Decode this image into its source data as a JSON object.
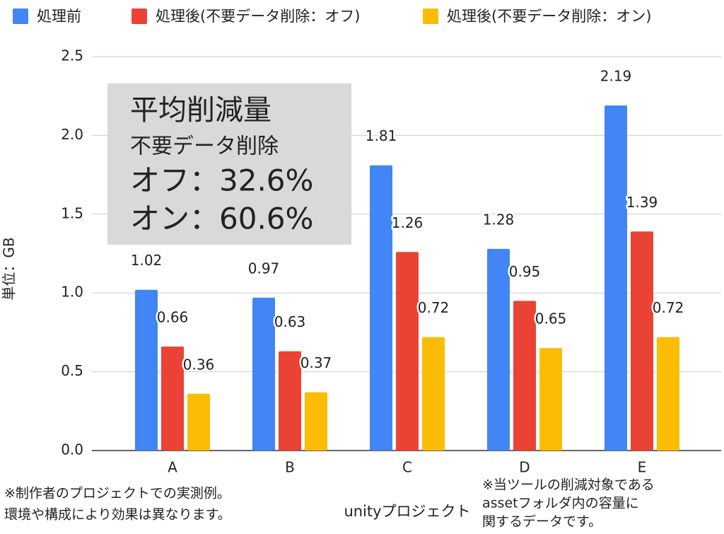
{
  "chart_data": {
    "type": "bar",
    "categories": [
      "A",
      "B",
      "C",
      "D",
      "E"
    ],
    "series": [
      {
        "name": "処理前",
        "color": "#4285f4",
        "values": [
          1.02,
          0.97,
          1.81,
          1.28,
          2.19
        ]
      },
      {
        "name": "処理後(不要データ削除：オフ)",
        "color": "#ea4335",
        "values": [
          0.66,
          0.63,
          1.26,
          0.95,
          1.39
        ]
      },
      {
        "name": "処理後(不要データ削除：オン)",
        "color": "#fbbc04",
        "values": [
          0.36,
          0.37,
          0.72,
          0.65,
          0.72
        ]
      }
    ],
    "ylim": [
      0,
      2.5
    ],
    "yticks": [
      {
        "value": 0,
        "label": "0.0"
      },
      0.5,
      {
        "value": 1,
        "label": "1.0"
      },
      1.5,
      {
        "value": 2,
        "label": "2.0"
      },
      2.5
    ],
    "grid": true,
    "x_label": "unityプロジェクト",
    "y_label": "単位：GB",
    "annotation": [
      "平均削減量",
      "不要データ削除",
      "オフ：32.6%",
      "オン：60.6%"
    ],
    "notes": [
      [
        "※制作者のプロジェクトでの実測例。",
        "環境や構成により効果は異なります。"
      ],
      [
        "※当ツールの削減対象である",
        "assetフォルダ内の容量に",
        "関するデータです。"
      ]
    ]
  }
}
